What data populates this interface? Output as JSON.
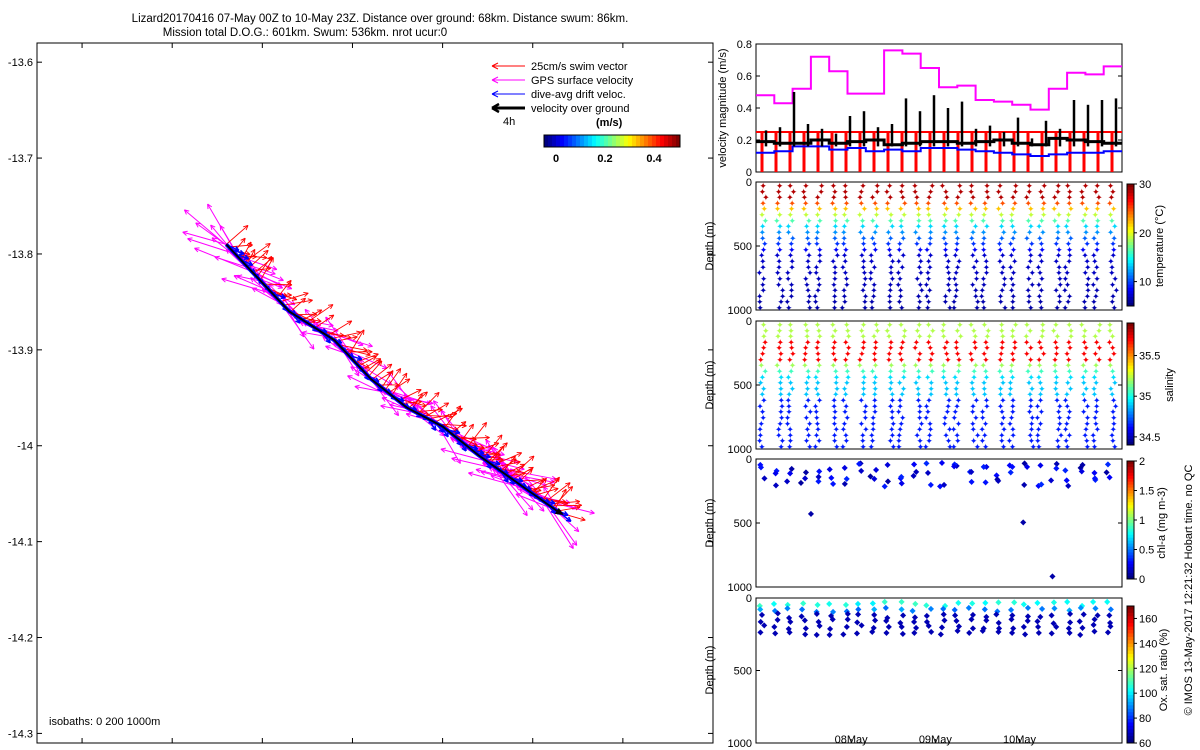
{
  "title": {
    "line1": "Lizard20170416 07-May 00Z to 10-May 23Z. Distance over ground: 68km. Distance swum: 86km.",
    "line2": "Mission total D.O.G.: 601km. Swum: 536km. nrot ucur:0"
  },
  "side_note": "© IMOS 13-May-2017 12:21:32 Hobart time. no QC",
  "colors": {
    "swim": "#ff0000",
    "gps": "#ff00ff",
    "drift": "#0000ff",
    "dog": "#000000"
  },
  "chart_data": [
    {
      "type": "scatter",
      "name": "track-map",
      "xlim": [
        145.55,
        146.3
      ],
      "ylim": [
        -14.31,
        -13.58
      ],
      "xticks": [
        "145.6",
        "145.7",
        "145.8",
        "145.9",
        "146",
        "146.1",
        "146.2",
        "146.3"
      ],
      "yticks": [
        "-13.6",
        "-13.7",
        "-13.8",
        "-13.9",
        "-14",
        "-14.1",
        "-14.2",
        "-14.3"
      ],
      "legend": [
        {
          "label": "25cm/s swim vector",
          "color": "#ff0000"
        },
        {
          "label": "GPS surface velocity",
          "color": "#ff00ff"
        },
        {
          "label": "dive-avg drift veloc.",
          "color": "#0000ff"
        },
        {
          "label": "velocity over ground",
          "color": "#000000"
        }
      ],
      "legend_time": "4h",
      "colorbar": {
        "label": "(m/s)",
        "ticks": [
          "0",
          "0.2",
          "0.4"
        ]
      },
      "isobaths_note": "isobaths: 0   200  1000m",
      "track": {
        "lon": [
          145.76,
          145.79,
          145.83,
          145.88,
          145.92,
          145.96,
          146.0,
          146.04,
          146.07,
          146.1,
          146.13
        ],
        "lat": [
          -13.79,
          -13.82,
          -13.86,
          -13.89,
          -13.93,
          -13.96,
          -13.98,
          -14.01,
          -14.03,
          -14.05,
          -14.07
        ]
      }
    },
    {
      "type": "line",
      "name": "velocity-panel",
      "ylabel": "velocity magnitude (m/s)",
      "ylim": [
        0,
        0.8
      ],
      "yticks": [
        "0",
        "0.2",
        "0.4",
        "0.6",
        "0.8"
      ],
      "series": [
        {
          "key": "gps",
          "values": [
            0.48,
            0.43,
            0.52,
            0.72,
            0.63,
            0.49,
            0.49,
            0.76,
            0.74,
            0.65,
            0.53,
            0.54,
            0.45,
            0.44,
            0.42,
            0.39,
            0.52,
            0.62,
            0.61,
            0.66
          ]
        },
        {
          "key": "drift",
          "values": [
            0.12,
            0.13,
            0.16,
            0.16,
            0.14,
            0.15,
            0.13,
            0.14,
            0.13,
            0.15,
            0.15,
            0.14,
            0.13,
            0.12,
            0.11,
            0.1,
            0.11,
            0.12,
            0.12,
            0.13
          ]
        },
        {
          "key": "swim",
          "values": [
            0.25,
            0.25,
            0.25,
            0.25,
            0.25,
            0.25,
            0.25,
            0.25,
            0.25,
            0.25,
            0.25,
            0.25,
            0.25,
            0.25,
            0.25,
            0.25,
            0.25,
            0.25,
            0.25,
            0.25
          ]
        },
        {
          "key": "dog",
          "values": [
            0.19,
            0.18,
            0.18,
            0.2,
            0.18,
            0.19,
            0.2,
            0.17,
            0.18,
            0.19,
            0.19,
            0.18,
            0.19,
            0.2,
            0.18,
            0.17,
            0.21,
            0.2,
            0.19,
            0.18
          ]
        }
      ],
      "dog_spikes": [
        0.26,
        0.28,
        0.5,
        0.3,
        0.27,
        0.24,
        0.35,
        0.38,
        0.28,
        0.3,
        0.46,
        0.38,
        0.48,
        0.4,
        0.44,
        0.27,
        0.29,
        0.25,
        0.34,
        0.21,
        0.32,
        0.27,
        0.45,
        0.42,
        0.45,
        0.46
      ]
    },
    {
      "type": "scatter",
      "name": "temperature-section",
      "ylabel": "Depth (m)",
      "yticks": [
        "0",
        "500",
        "1000"
      ],
      "ylim": [
        0,
        1000
      ],
      "colorbar": {
        "label": "temperature (°C)",
        "ticks": [
          "30",
          "20",
          "10"
        ],
        "range": [
          5,
          30
        ]
      },
      "profiles": 26
    },
    {
      "type": "scatter",
      "name": "salinity-section",
      "ylabel": "Depth (m)",
      "yticks": [
        "0",
        "500",
        "1000"
      ],
      "ylim": [
        0,
        1000
      ],
      "colorbar": {
        "label": "salinity",
        "ticks": [
          "35.5",
          "35",
          "34.5"
        ],
        "range": [
          34.4,
          35.9
        ]
      },
      "profiles": 26
    },
    {
      "type": "scatter",
      "name": "chla-section",
      "ylabel": "Depth (m)",
      "yticks": [
        "0",
        "500",
        "1000"
      ],
      "ylim": [
        0,
        1000
      ],
      "colorbar": {
        "label": "chl-a (mg m-3)",
        "ticks": [
          "2",
          "1.5",
          "1",
          "0.5",
          "0"
        ],
        "range": [
          0,
          2
        ]
      },
      "outliers": [
        {
          "x": 0.15,
          "depth": 420
        },
        {
          "x": 0.73,
          "depth": 490
        },
        {
          "x": 0.81,
          "depth": 910
        }
      ]
    },
    {
      "type": "scatter",
      "name": "oxygen-section",
      "ylabel": "Depth (m)",
      "yticks": [
        "0",
        "500",
        "1000"
      ],
      "ylim": [
        0,
        1000
      ],
      "xlabel_ticks": [
        "08May",
        "09May",
        "10May"
      ],
      "colorbar": {
        "label": "Ox. sat. ratio (%)",
        "ticks": [
          "160",
          "140",
          "120",
          "100",
          "80",
          "60"
        ],
        "range": [
          60,
          170
        ]
      }
    }
  ]
}
